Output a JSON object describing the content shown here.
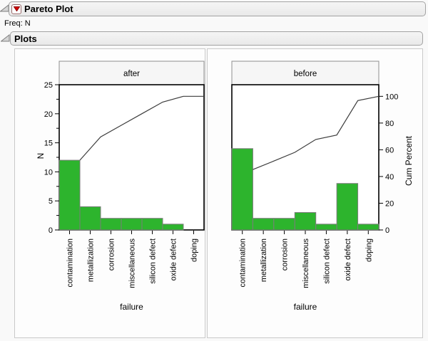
{
  "outline": {
    "title": "Pareto Plot",
    "freq_label": "Freq: N",
    "plots_label": "Plots",
    "menu_icon": "red-triangle-menu",
    "disclosure_icon": "open-disclosure-triangle"
  },
  "chart_data": [
    {
      "type": "bar",
      "subtype": "pareto",
      "panel_label": "after",
      "categories": [
        "contamination",
        "metallization",
        "corrosion",
        "miscellaneous",
        "silicon defect",
        "oxide defect",
        "doping"
      ],
      "values": [
        12,
        4,
        2,
        2,
        2,
        1,
        0
      ],
      "cum_counts": [
        12,
        16,
        18,
        20,
        22,
        23,
        23
      ],
      "cum_percent": [
        52.2,
        69.6,
        78.3,
        87.0,
        95.7,
        100,
        100
      ],
      "total_n": 23,
      "xlabel": "failure",
      "ylabel": "N",
      "ylim": [
        0,
        25
      ]
    },
    {
      "type": "bar",
      "subtype": "pareto",
      "panel_label": "before",
      "categories": [
        "contamination",
        "metallization",
        "corrosion",
        "miscellaneous",
        "silicon defect",
        "oxide defect",
        "doping"
      ],
      "values": [
        14,
        2,
        2,
        3,
        1,
        8,
        1
      ],
      "cum_counts": [
        14,
        16,
        18,
        21,
        22,
        30,
        31
      ],
      "cum_percent": [
        45.2,
        51.6,
        58.1,
        67.7,
        71.0,
        96.8,
        100
      ],
      "total_n": 31,
      "xlabel": "failure",
      "ylabel": "N",
      "ylim": [
        0,
        25
      ]
    }
  ],
  "axes": {
    "y_label": "N",
    "y_major_ticks": [
      0,
      5,
      10,
      15,
      20,
      25
    ],
    "y_minor_step": 2.5,
    "x_label": "failure",
    "right_label": "Cum Percent",
    "right_ticks": [
      0,
      20,
      40,
      60,
      80,
      100
    ],
    "right_axis_100pct_aligns_with_n": 23,
    "grid": false
  },
  "colors": {
    "bar_fill": "#2db42d",
    "bar_stroke": "#7c7c7c",
    "cum_line": "#3c3c3c",
    "frame_stroke": "#000000",
    "header_fill": "#f6f6f6",
    "header_stroke": "#8e8e8e",
    "accent_red": "#d40000"
  }
}
